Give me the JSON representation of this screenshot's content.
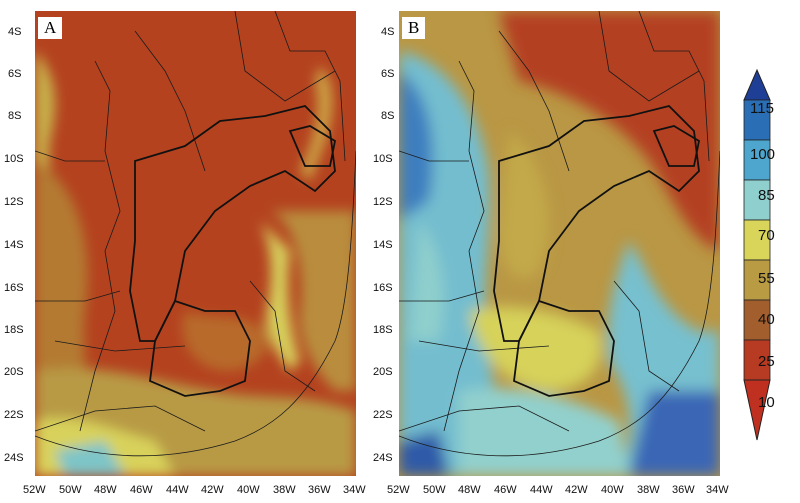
{
  "panels": [
    {
      "letter": "A"
    },
    {
      "letter": "B"
    }
  ],
  "latitude_ticks": [
    "4S",
    "6S",
    "8S",
    "10S",
    "12S",
    "14S",
    "16S",
    "18S",
    "20S",
    "22S",
    "24S"
  ],
  "longitude_ticks": [
    "52W",
    "50W",
    "48W",
    "46W",
    "44W",
    "42W",
    "40W",
    "38W",
    "36W",
    "34W"
  ],
  "colorbar": {
    "labels": [
      "115",
      "100",
      "85",
      "70",
      "55",
      "40",
      "25",
      "10"
    ],
    "colors": [
      "#1f3f96",
      "#2a6fb6",
      "#4ea6cf",
      "#8fd0cf",
      "#d8d55a",
      "#b99b44",
      "#a25e2c",
      "#b73a22"
    ]
  }
}
